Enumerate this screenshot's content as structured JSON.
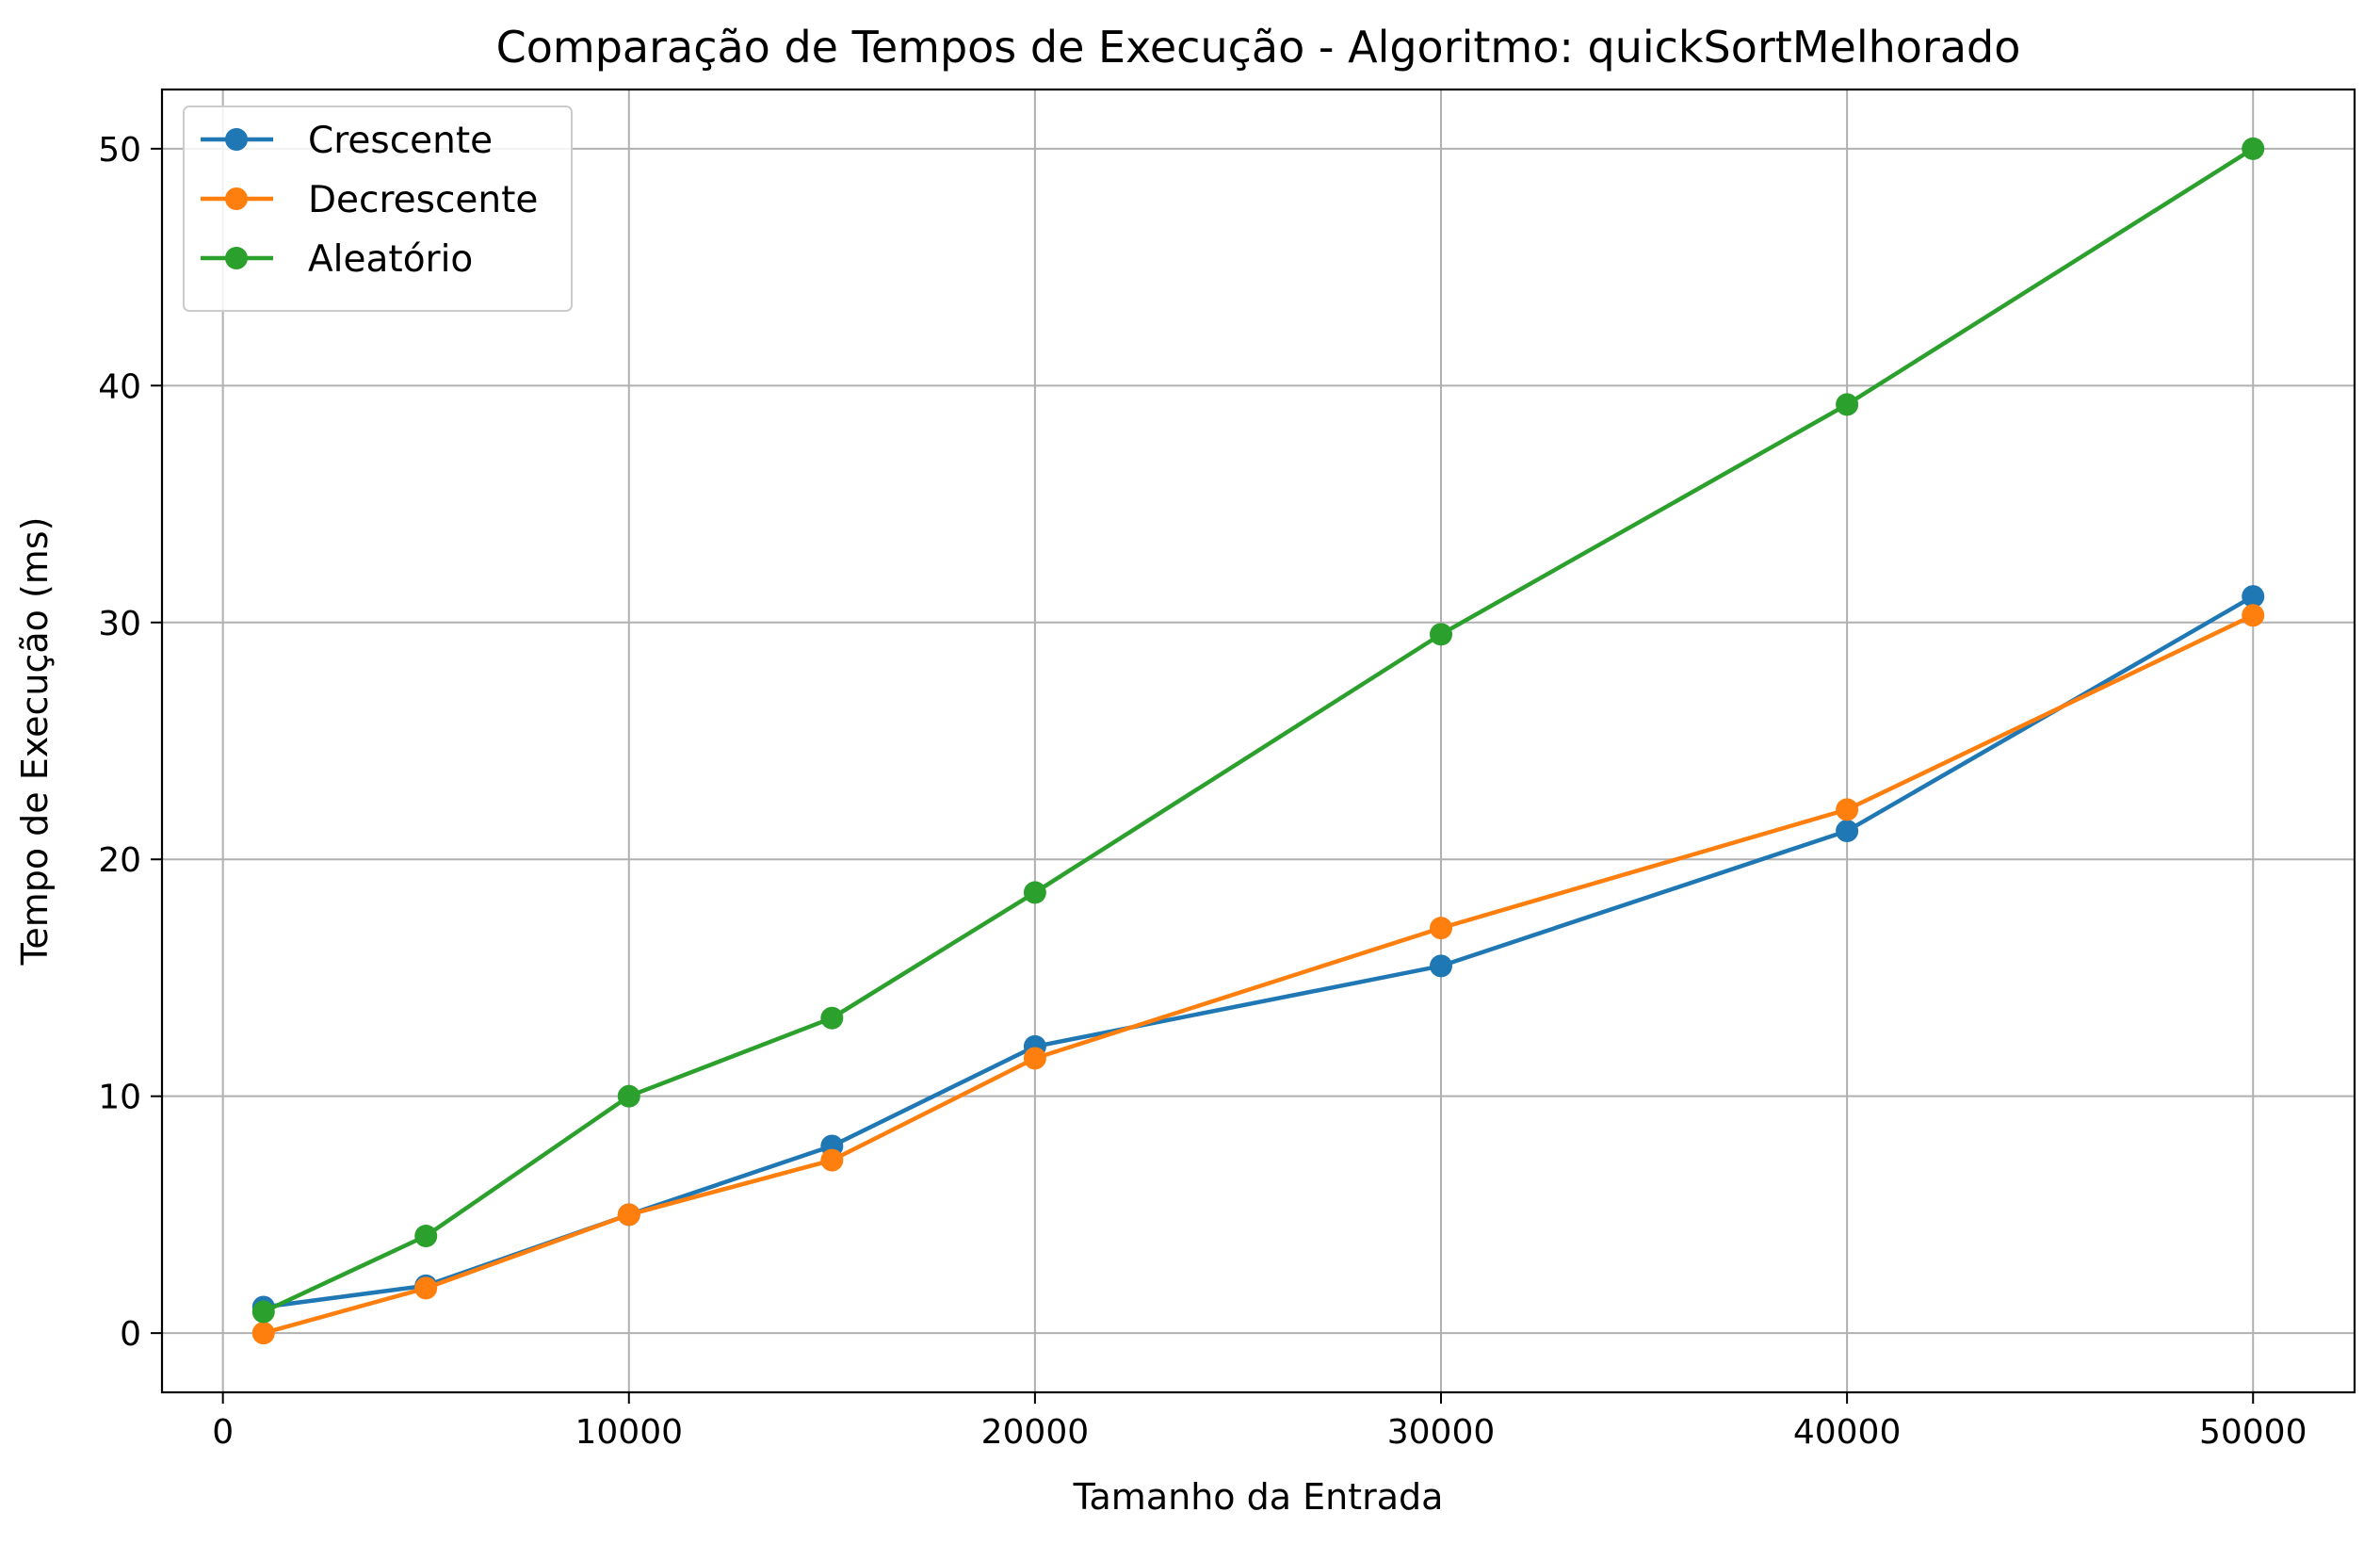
{
  "chart_data": {
    "type": "line",
    "title": "Comparação de Tempos de Execução - Algoritmo: quickSortMelhorado",
    "xlabel": "Tamanho da Entrada",
    "ylabel": "Tempo de Execução (ms)",
    "x": [
      1000,
      5000,
      10000,
      15000,
      20000,
      30000,
      40000,
      50000
    ],
    "xlim": [
      -1500,
      52500
    ],
    "ylim": [
      -2.5,
      52.5
    ],
    "xticks": [
      0,
      10000,
      20000,
      30000,
      40000,
      50000
    ],
    "yticks": [
      0,
      10,
      20,
      30,
      40,
      50
    ],
    "grid": true,
    "legend_position": "top-left",
    "series": [
      {
        "name": "Crescente",
        "color": "#1f77b4",
        "marker": "circle",
        "values": [
          1.1,
          2.0,
          5.0,
          7.9,
          12.1,
          15.5,
          21.2,
          31.1
        ]
      },
      {
        "name": "Decrescente",
        "color": "#ff7f0e",
        "marker": "circle",
        "values": [
          0.0,
          1.9,
          5.0,
          7.3,
          11.6,
          17.1,
          22.1,
          30.3
        ]
      },
      {
        "name": "Aleatório",
        "color": "#2ca02c",
        "marker": "circle",
        "values": [
          0.9,
          4.1,
          10.0,
          13.3,
          18.6,
          29.5,
          39.2,
          50.0
        ]
      }
    ]
  }
}
